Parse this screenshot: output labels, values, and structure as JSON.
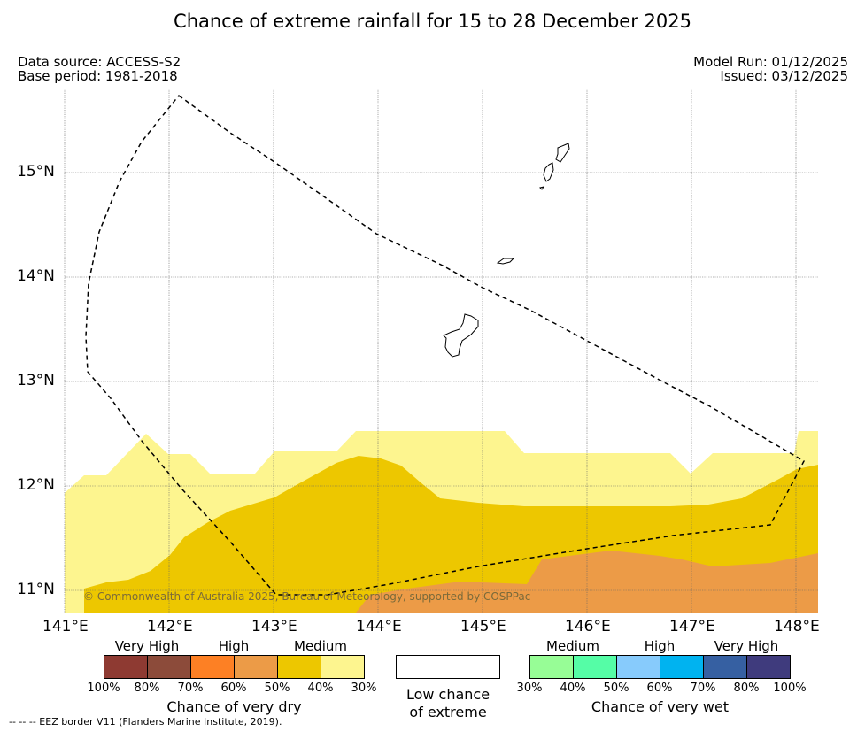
{
  "title": "Chance of extreme rainfall for 15 to 28 December 2025",
  "info": {
    "data_source": "Data source: ACCESS-S2",
    "base_period": "Base period: 1981-2018",
    "model_run": "Model Run: 01/12/2025",
    "issued": "Issued: 03/12/2025"
  },
  "map": {
    "lon_ticks": [
      "141°E",
      "142°E",
      "143°E",
      "144°E",
      "145°E",
      "146°E",
      "147°E",
      "148°E"
    ],
    "lat_ticks": [
      "11°N",
      "12°N",
      "13°N",
      "14°N",
      "15°N"
    ],
    "copyright": "© Commonwealth of Australia 2025, Bureau of Meteorology, supported by COSPPac",
    "colors": {
      "dry_30_40": "#fdf58f",
      "dry_40_50": "#edc700",
      "dry_50_60": "#ec9b47",
      "land_outline": "#000000",
      "eez_border": "#000000"
    }
  },
  "legend": {
    "dry": {
      "categories": [
        "Very High",
        "High",
        "Medium"
      ],
      "colors": [
        "#8e3a32",
        "#8c4b3a",
        "#fd8024",
        "#ec9b47",
        "#edc700",
        "#fdf58f"
      ],
      "pcts": [
        "100%",
        "80%",
        "70%",
        "60%",
        "50%",
        "40%",
        "30%"
      ],
      "title": "Chance of very dry"
    },
    "low": {
      "line1": "Low chance",
      "line2": "of extreme",
      "color": "#ffffff"
    },
    "wet": {
      "categories": [
        "Medium",
        "High",
        "Very High"
      ],
      "colors": [
        "#97fd96",
        "#55fda6",
        "#87cbfc",
        "#00b3f0",
        "#3660a2",
        "#3f3b7d"
      ],
      "pcts": [
        "30%",
        "40%",
        "50%",
        "60%",
        "70%",
        "80%",
        "100%"
      ],
      "title": "Chance of very wet"
    }
  },
  "footnote": "--  --  -- EEZ border V11 (Flanders Marine Institute, 2019)."
}
